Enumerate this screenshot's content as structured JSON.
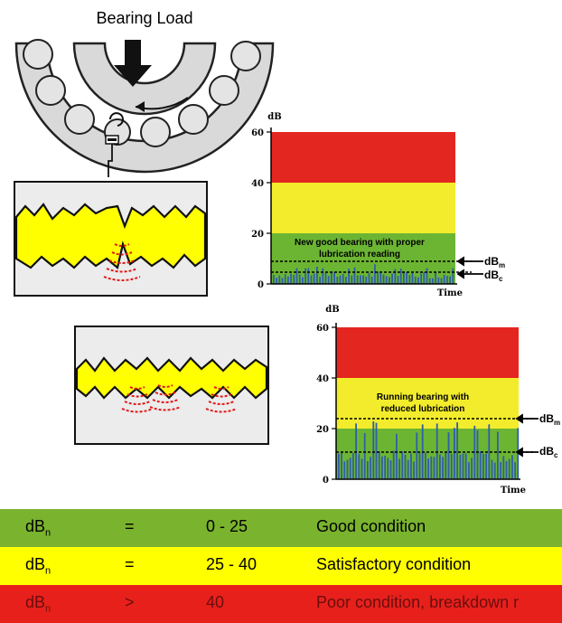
{
  "bearing": {
    "title": "Bearing Load"
  },
  "chart_top": {
    "y_unit": "dB",
    "y_ticks": [
      "60",
      "40",
      "20",
      "0"
    ],
    "x_label": "Time",
    "annotation": [
      "New good bearing with proper",
      "lubrication reading"
    ],
    "marker_m": "dB",
    "marker_m_sub": "m",
    "marker_c": "dB",
    "marker_c_sub": "c"
  },
  "chart_bottom": {
    "y_unit": "dB",
    "y_ticks": [
      "60",
      "40",
      "20",
      "0"
    ],
    "x_label": "Time",
    "annotation": [
      "Running bearing with",
      "reduced lubrication"
    ],
    "marker_m": "dB",
    "marker_m_sub": "m",
    "marker_c": "dB",
    "marker_c_sub": "c"
  },
  "zone_colors": {
    "good": "#6cb533",
    "satisfactory": "#f2ec2c",
    "poor": "#e3261f",
    "noise": "#2f5fa8"
  },
  "conditions": [
    {
      "symbol": "dB",
      "sub": "n",
      "operator": "=",
      "range": "0 - 25",
      "description": "Good condition",
      "color": "#7ab32e"
    },
    {
      "symbol": "dB",
      "sub": "n",
      "operator": "=",
      "range": "25 - 40",
      "description": "Satisfactory condition",
      "color": "#ffff00"
    },
    {
      "symbol": "dB",
      "sub": "n",
      "operator": ">",
      "range": "40",
      "description": "Poor condition, breakdown r",
      "color": "#e8201c"
    }
  ]
}
